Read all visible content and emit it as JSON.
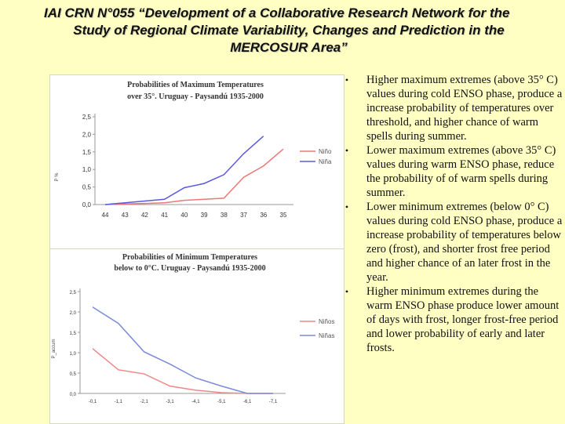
{
  "slide": {
    "title_line1": "IAI CRN N°055 “Development of a Collaborative Research Network for the",
    "title_line2": "Study of Regional Climate Variability, Changes and Prediction in the",
    "title_line3": "MERCOSUR Area”"
  },
  "bullets": [
    {
      "marker": "•",
      "text": "Higher maximum extremes (above 35° C) values during cold ENSO phase, produce a increase probability of  temperatures over threshold, and higher chance of warm spells during summer."
    },
    {
      "marker": "•",
      "text": "Lower maximum extremes (above 35° C) values during warm ENSO phase, reduce the probability of  of warm spells during summer."
    },
    {
      "marker": "•",
      "text": "Lower minimum extremes (below 0° C) values during cold ENSO phase, produce a increase probability of  temperatures below zero (frost), and shorter frost free period and higher chance of an later frost in the year."
    },
    {
      "marker": "•",
      "text": "Higher minimum extremes during the warm ENSO phase produce lower amount of days with frost, longer frost-free period and lower probability of early and later frosts."
    }
  ],
  "chart_data": [
    {
      "type": "line",
      "title_line1": "Probabilities of Maximum Temperatures",
      "title_line2": "over 35°. Uruguay - Paysandú 1935-2000",
      "ylabel": "P %",
      "categories": [
        "44",
        "43",
        "42",
        "41",
        "40",
        "39",
        "38",
        "37",
        "36",
        "35"
      ],
      "ylim": [
        0,
        2.5
      ],
      "yticks": [
        "0,0",
        "0,5",
        "1,0",
        "1,5",
        "2,0",
        "2,5"
      ],
      "series": [
        {
          "name": "Niño",
          "color": "#ee7777",
          "values": [
            0.0,
            0.02,
            0.03,
            0.05,
            0.12,
            0.15,
            0.18,
            0.78,
            1.1,
            1.58
          ]
        },
        {
          "name": "Niña",
          "color": "#5a5ae0",
          "values": [
            0.0,
            0.05,
            0.1,
            0.15,
            0.48,
            0.6,
            0.85,
            1.45,
            1.95,
            null
          ]
        }
      ]
    },
    {
      "type": "line",
      "title_line1": "Probabilities of Minimum Temperatures",
      "title_line2": "below to 0°C. Uruguay - Paysandú 1935-2000",
      "ylabel": "P_accum",
      "categories": [
        "-0,1",
        "-1,1",
        "-2,1",
        "-3,1",
        "-4,1",
        "-5,1",
        "-6,1",
        "-7,1"
      ],
      "ylim": [
        0,
        2.5
      ],
      "yticks": [
        "0,0",
        "0,5",
        "1,0",
        "1,5",
        "2,0",
        "2,5"
      ],
      "series": [
        {
          "name": "Niños",
          "color": "#ee8888",
          "values": [
            1.1,
            0.58,
            0.48,
            0.18,
            0.08,
            0.02,
            0.0,
            0.0
          ]
        },
        {
          "name": "Niñas",
          "color": "#7a8ad8",
          "values": [
            2.12,
            1.72,
            1.02,
            0.72,
            0.38,
            0.18,
            0.0,
            0.0
          ]
        }
      ]
    }
  ]
}
